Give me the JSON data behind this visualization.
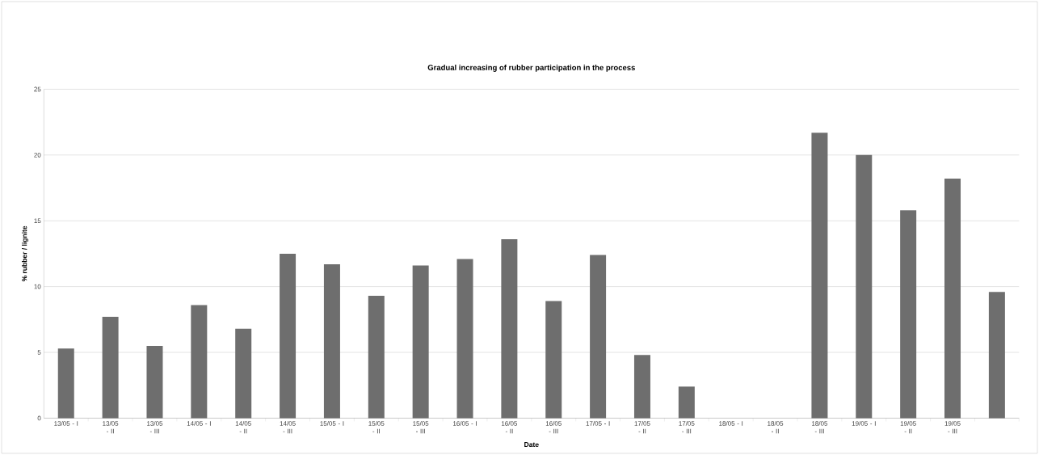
{
  "chart_data": {
    "type": "bar",
    "title": "Gradual increasing of rubber participation in the process",
    "xlabel": "Date",
    "ylabel": "% rubber / lignite",
    "categories": [
      "13/05 - I",
      "13/05 - II",
      "13/05 - III",
      "14/05 - I",
      "14/05 - II",
      "14/05 - III",
      "15/05 - I",
      "15/05 - II",
      "15/05 - III",
      "16/05 - I",
      "16/05 - II",
      "16/05 - III",
      "17/05 - I",
      "17/05 - II",
      "17/05 - III",
      "18/05 - I",
      "18/05 - II",
      "18/05 - III",
      "19/05 - I",
      "19/05 - II",
      "19/05 - III",
      null
    ],
    "values": [
      5.3,
      7.7,
      5.5,
      8.6,
      6.8,
      12.5,
      11.7,
      9.3,
      11.6,
      12.1,
      13.6,
      8.9,
      12.4,
      4.8,
      2.4,
      0,
      0,
      21.7,
      20.0,
      15.8,
      18.2,
      9.6
    ],
    "color": "#6e6e6e",
    "ylim": [
      0,
      25
    ],
    "yticks": [
      0,
      5,
      10,
      15,
      20,
      25
    ],
    "grid": "y"
  }
}
